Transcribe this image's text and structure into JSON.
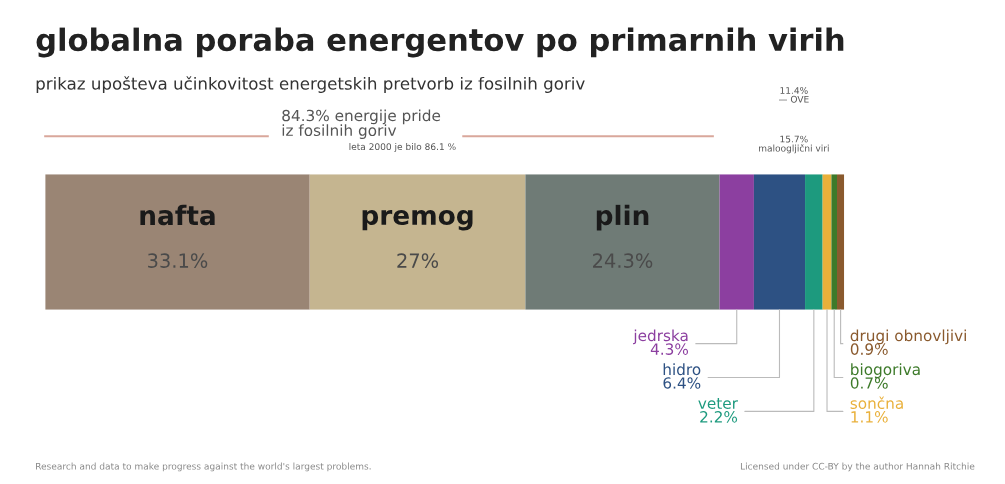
{
  "chart_data": {
    "type": "bar",
    "orientation": "horizontal",
    "stacked": true,
    "title": "globalna poraba energentov po primarnih virih",
    "subtitle": "prikaz upošteva učinkovitost energetskih pretvorb iz fosilnih goriv",
    "categories": [
      null
    ],
    "series": [
      {
        "name": "nafta",
        "color": "#9a8574",
        "values": [
          33.1
        ],
        "value_labels": [
          "33.1%"
        ]
      },
      {
        "name": "premog",
        "color": "#c5b590",
        "values": [
          27
        ],
        "value_labels": [
          "27%"
        ]
      },
      {
        "name": "plin",
        "color": "#6f7b76",
        "values": [
          24.3
        ],
        "value_labels": [
          "24.3%"
        ]
      },
      {
        "name": "jedrska",
        "color": "#8c3fa0",
        "values": [
          4.3
        ],
        "value_labels": [
          "4.3%"
        ]
      },
      {
        "name": "hidro",
        "color": "#2d5183",
        "values": [
          6.4
        ],
        "value_labels": [
          "6.4%"
        ]
      },
      {
        "name": "veter",
        "color": "#1d9a7e",
        "values": [
          2.2
        ],
        "value_labels": [
          "2.2%"
        ]
      },
      {
        "name": "sončna",
        "color": "#e9b03a",
        "values": [
          1.1
        ],
        "value_labels": [
          "1.1%"
        ]
      },
      {
        "name": "biogoriva",
        "color": "#3d7a2a",
        "values": [
          0.7
        ],
        "value_labels": [
          "0.7%"
        ]
      },
      {
        "name": "drugi obnovljivi",
        "color": "#8a5a2e",
        "values": [
          0.9
        ],
        "value_labels": [
          "0.9%"
        ]
      }
    ],
    "annotations": [
      "84.3% energije pride\niz fosilnih goriv",
      "leta 2000 je bilo 86.1 %",
      "11.4%\n— OVE",
      "15.7%\nmaloogljični viri",
      "Research and data to make progress against the world's largest problems.",
      "Licensed under CC-BY by the author Hannah Ritchie"
    ],
    "legend": false
  }
}
